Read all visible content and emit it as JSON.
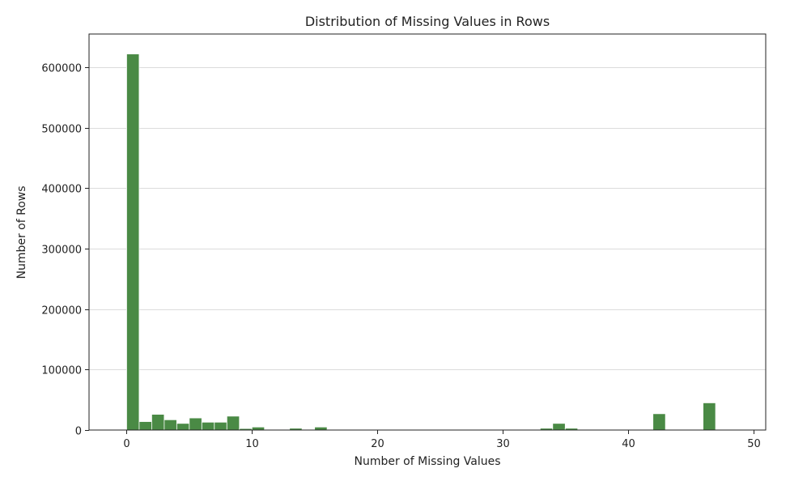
{
  "chart_data": {
    "type": "bar",
    "title": "Distribution of Missing Values in Rows",
    "xlabel": "Number of Missing Values",
    "ylabel": "Number of Rows",
    "xlim": [
      -3,
      51
    ],
    "ylim": [
      0,
      655000
    ],
    "xticks": [
      0,
      10,
      20,
      30,
      40,
      50
    ],
    "yticks": [
      0,
      100000,
      200000,
      300000,
      400000,
      500000,
      600000
    ],
    "grid": "y",
    "bar_color": "#4a8a45",
    "bin_width": 1.0,
    "bins": [
      {
        "x": 0,
        "value": 622000
      },
      {
        "x": 1,
        "value": 14000
      },
      {
        "x": 2,
        "value": 26000
      },
      {
        "x": 3,
        "value": 17000
      },
      {
        "x": 4,
        "value": 11000
      },
      {
        "x": 5,
        "value": 20000
      },
      {
        "x": 6,
        "value": 13000
      },
      {
        "x": 7,
        "value": 13000
      },
      {
        "x": 8,
        "value": 23000
      },
      {
        "x": 9,
        "value": 2500
      },
      {
        "x": 10,
        "value": 5000
      },
      {
        "x": 11,
        "value": 800
      },
      {
        "x": 12,
        "value": 600
      },
      {
        "x": 13,
        "value": 3000
      },
      {
        "x": 14,
        "value": 600
      },
      {
        "x": 15,
        "value": 5000
      },
      {
        "x": 16,
        "value": 1200
      },
      {
        "x": 17,
        "value": 1000
      },
      {
        "x": 18,
        "value": 400
      },
      {
        "x": 19,
        "value": 600
      },
      {
        "x": 20,
        "value": 400
      },
      {
        "x": 21,
        "value": 300
      },
      {
        "x": 32,
        "value": 500
      },
      {
        "x": 33,
        "value": 3000
      },
      {
        "x": 34,
        "value": 11000
      },
      {
        "x": 35,
        "value": 3000
      },
      {
        "x": 42,
        "value": 27000
      },
      {
        "x": 46,
        "value": 45000
      }
    ]
  }
}
